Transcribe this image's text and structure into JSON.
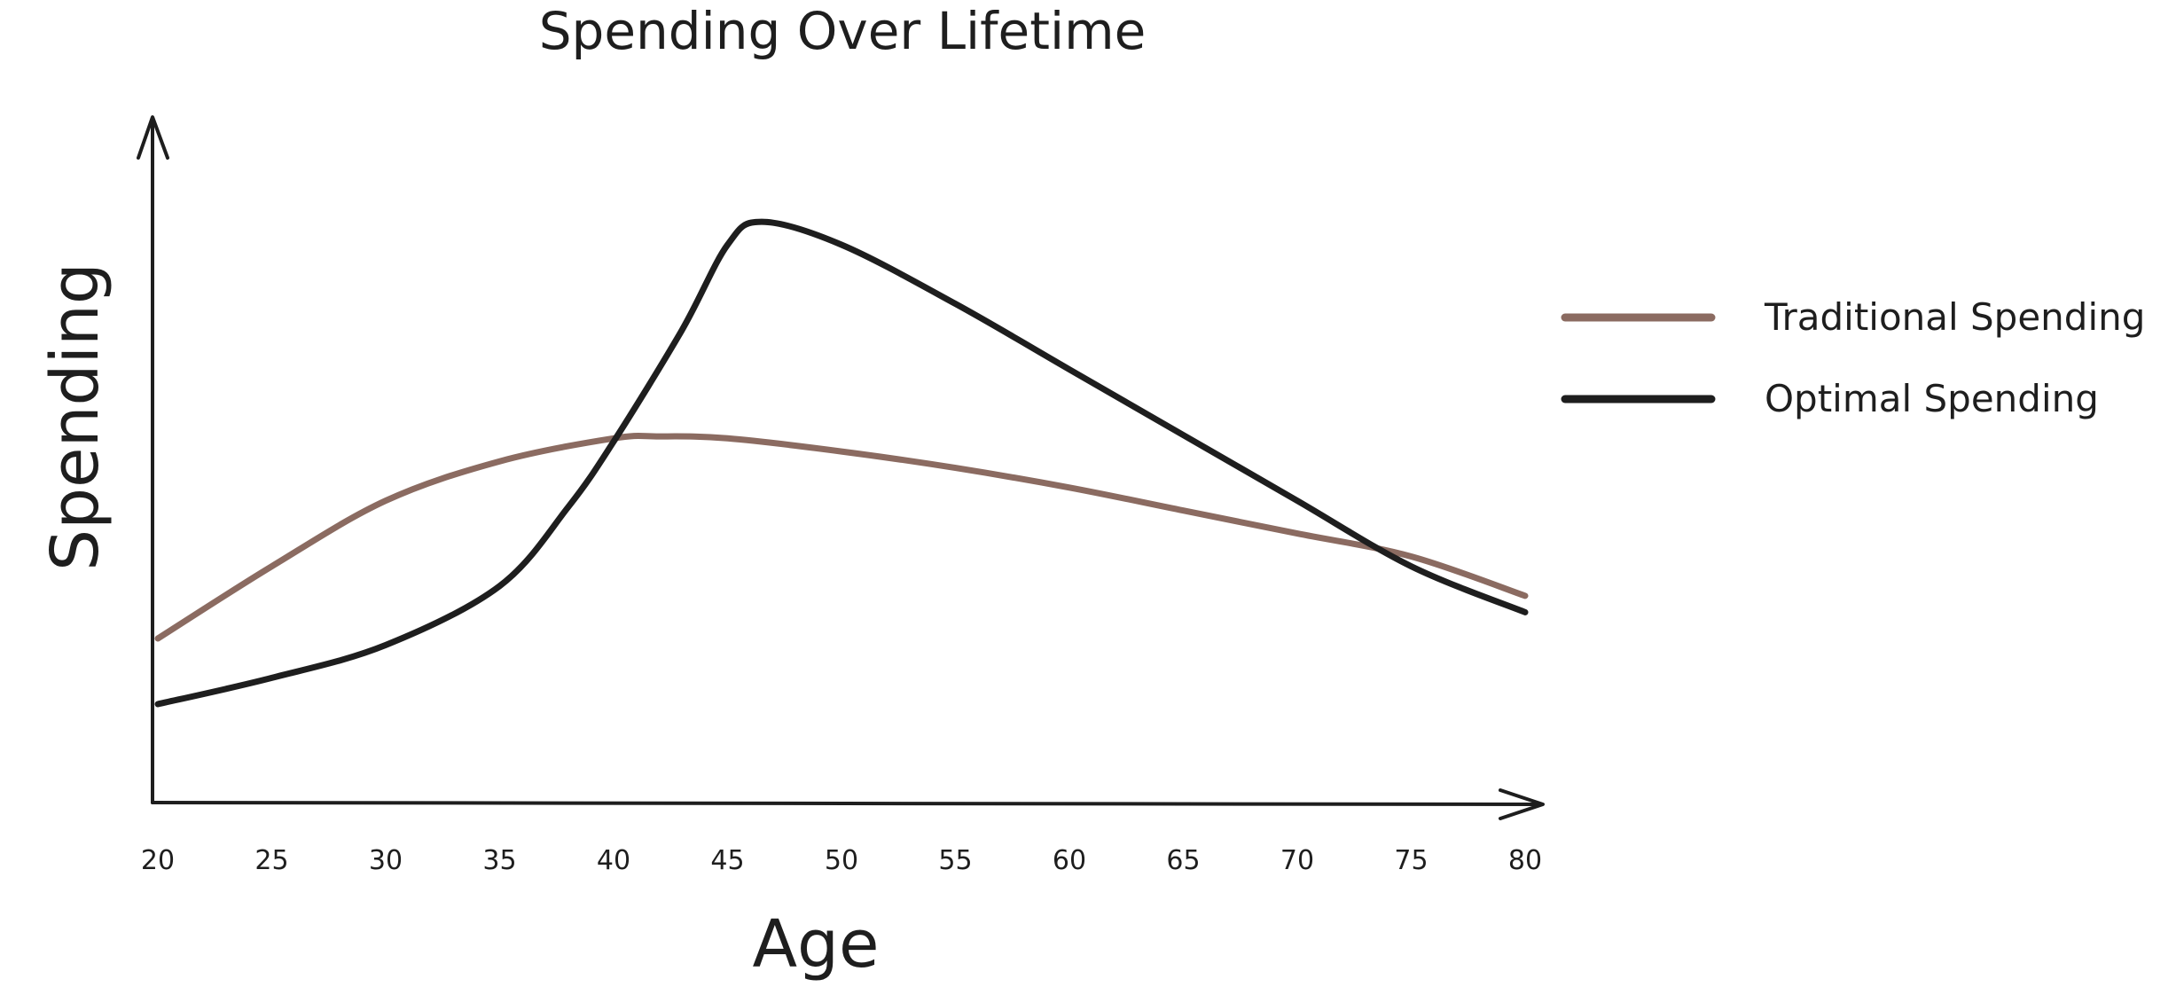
{
  "chart_data": {
    "type": "line",
    "title": "Spending Over Lifetime",
    "xlabel": "Age",
    "ylabel": "Spending",
    "x_ticks": [
      "20",
      "25",
      "30",
      "35",
      "40",
      "45",
      "50",
      "55",
      "60",
      "65",
      "70",
      "75",
      "80"
    ],
    "xlim": [
      20,
      80
    ],
    "ylim": [
      0,
      100
    ],
    "y_ticks_shown": false,
    "grid": false,
    "legend_position": "right",
    "series": [
      {
        "name": "Traditional Spending",
        "color": "#8b6b61",
        "x": [
          20,
          25,
          30,
          35,
          40,
          42,
          45,
          50,
          55,
          60,
          65,
          70,
          75,
          80
        ],
        "y": [
          25,
          36,
          46,
          52,
          55.5,
          55.8,
          55.5,
          53.5,
          51,
          48,
          44.5,
          41,
          37.5,
          31.5
        ]
      },
      {
        "name": "Optimal Spending",
        "color": "#1e1e1e",
        "x": [
          20,
          25,
          30,
          35,
          38,
          40,
          43,
          45,
          46.5,
          50,
          55,
          60,
          65,
          70,
          75,
          80
        ],
        "y": [
          15,
          19,
          24,
          33,
          45,
          55,
          72,
          85,
          88.5,
          85,
          76,
          66,
          56,
          46,
          36,
          29
        ]
      }
    ]
  }
}
